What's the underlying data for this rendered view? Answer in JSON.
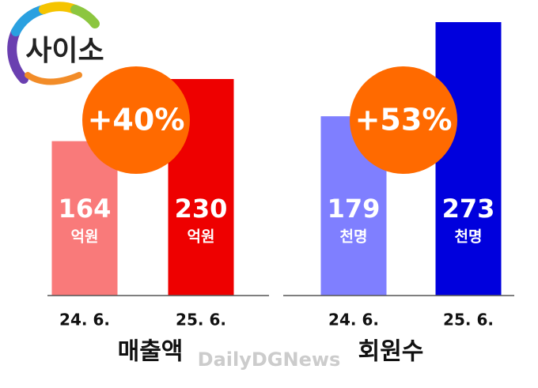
{
  "logo": "사이소",
  "watermark": "DailyDGNews",
  "chart_data": [
    {
      "type": "bar",
      "title": "매출액",
      "categories": [
        "24. 6.",
        "25. 6."
      ],
      "values": [
        164,
        230
      ],
      "unit": "억원",
      "colors": [
        "#f97a7a",
        "#ee0000"
      ],
      "annotation": "+40%"
    },
    {
      "type": "bar",
      "title": "회원수",
      "categories": [
        "24. 6.",
        "25. 6."
      ],
      "values": [
        179,
        273
      ],
      "unit": "천명",
      "colors": [
        "#7f7fff",
        "#0000dd"
      ],
      "annotation": "+53%"
    }
  ]
}
